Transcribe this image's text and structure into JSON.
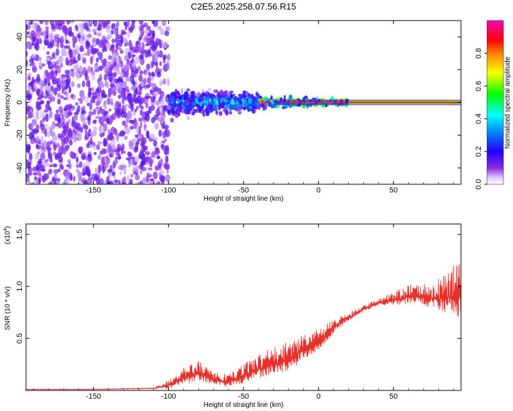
{
  "title": "C2E5.2025.258.07.56.R15",
  "chart_data": [
    {
      "type": "heatmap",
      "name": "spectrogram",
      "xlabel": "Height of straight line (km)",
      "ylabel": "Frequency (Hz)",
      "xlim": [
        -195,
        95
      ],
      "ylim": [
        -50,
        50
      ],
      "xticks": [
        -150,
        -100,
        -50,
        0,
        50
      ],
      "yticks": [
        -40,
        -20,
        0,
        20,
        40
      ],
      "colorbar": {
        "label": "Normalized spectral amplitude",
        "range": [
          0,
          1
        ],
        "ticks": [
          "0.0",
          "0.2",
          "0.4",
          "0.6",
          "0.8"
        ],
        "tick_values": [
          0.0,
          0.2,
          0.4,
          0.6,
          0.8
        ],
        "colormap": "rainbow (white-purple-blue-cyan-green-yellow-red-magenta)"
      },
      "regions": [
        {
          "x": [
            -195,
            -100
          ],
          "description": "noise",
          "freq_spread_hz": 50,
          "amplitude": 0.05
        },
        {
          "x": [
            -100,
            -40
          ],
          "description": "emerging signal",
          "freq_spread_hz": 12,
          "amplitude": 0.35
        },
        {
          "x": [
            -40,
            20
          ],
          "description": "narrowing signal",
          "freq_spread_hz": 5,
          "amplitude": 0.75
        },
        {
          "x": [
            20,
            95
          ],
          "description": "strong carrier line",
          "freq_hz": 0,
          "amplitude": 0.95
        }
      ]
    },
    {
      "type": "line",
      "name": "snr",
      "xlabel": "Height of straight line (km)",
      "ylabel": "SNR (10 * v/v)",
      "y_scale_label": "(x10",
      "y_scale_exponent": "4",
      "y_scale_suffix": ")",
      "xlim": [
        -195,
        95
      ],
      "ylim": [
        0,
        1.6
      ],
      "xticks": [
        -150,
        -100,
        -50,
        0,
        50
      ],
      "yticks": [
        0.5,
        1.0,
        1.5
      ],
      "ytick_labels": [
        "0.5",
        "1.0",
        "1.5"
      ],
      "color": "#e8302a",
      "series": {
        "name": "SNR",
        "x": [
          -195,
          -150,
          -110,
          -100,
          -90,
          -80,
          -70,
          -60,
          -50,
          -40,
          -30,
          -20,
          -10,
          0,
          10,
          20,
          30,
          40,
          50,
          60,
          70,
          80,
          90,
          95
        ],
        "y": [
          0.01,
          0.01,
          0.02,
          0.05,
          0.12,
          0.17,
          0.1,
          0.08,
          0.14,
          0.2,
          0.25,
          0.3,
          0.38,
          0.46,
          0.6,
          0.7,
          0.78,
          0.84,
          0.87,
          0.9,
          0.9,
          0.88,
          0.9,
          0.9
        ],
        "noise_amplitude": [
          0.003,
          0.003,
          0.005,
          0.05,
          0.1,
          0.12,
          0.07,
          0.08,
          0.12,
          0.15,
          0.17,
          0.18,
          0.17,
          0.13,
          0.08,
          0.05,
          0.04,
          0.04,
          0.08,
          0.12,
          0.14,
          0.2,
          0.3,
          0.35
        ]
      }
    }
  ],
  "colors": {
    "line": "#e8302a",
    "carrier": "#ff2020"
  }
}
